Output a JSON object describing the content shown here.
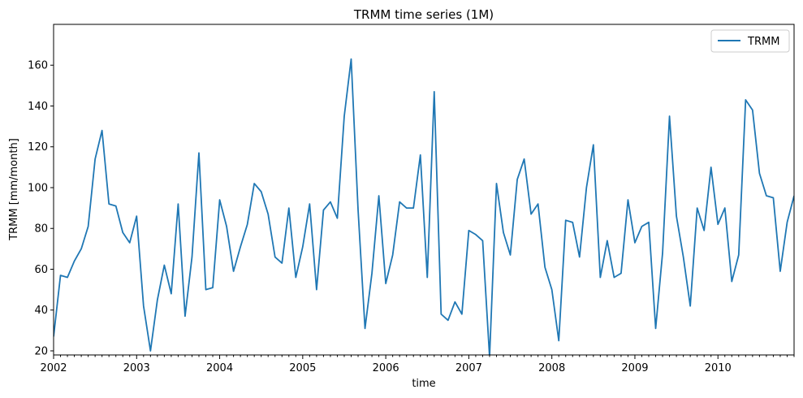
{
  "chart_data": {
    "type": "line",
    "title": "TRMM time series (1M)",
    "xlabel": "time",
    "ylabel": "TRMM [mm/month]",
    "ylim": [
      18,
      180
    ],
    "xlim": [
      "2002-01",
      "2010-12"
    ],
    "grid": false,
    "legend_position": "top-right",
    "color": "#1f77b4",
    "x_tick_labels": [
      "2002",
      "2003",
      "2004",
      "2005",
      "2006",
      "2007",
      "2008",
      "2009",
      "2010"
    ],
    "y_ticks": [
      20,
      40,
      60,
      80,
      100,
      120,
      140,
      160
    ],
    "series": [
      {
        "name": "TRMM",
        "x": [
          "2002-01",
          "2002-02",
          "2002-03",
          "2002-04",
          "2002-05",
          "2002-06",
          "2002-07",
          "2002-08",
          "2002-09",
          "2002-10",
          "2002-11",
          "2002-12",
          "2003-01",
          "2003-02",
          "2003-03",
          "2003-04",
          "2003-05",
          "2003-06",
          "2003-07",
          "2003-08",
          "2003-09",
          "2003-10",
          "2003-11",
          "2003-12",
          "2004-01",
          "2004-02",
          "2004-03",
          "2004-04",
          "2004-05",
          "2004-06",
          "2004-07",
          "2004-08",
          "2004-09",
          "2004-10",
          "2004-11",
          "2004-12",
          "2005-01",
          "2005-02",
          "2005-03",
          "2005-04",
          "2005-05",
          "2005-06",
          "2005-07",
          "2005-08",
          "2005-09",
          "2005-10",
          "2005-11",
          "2005-12",
          "2006-01",
          "2006-02",
          "2006-03",
          "2006-04",
          "2006-05",
          "2006-06",
          "2006-07",
          "2006-08",
          "2006-09",
          "2006-10",
          "2006-11",
          "2006-12",
          "2007-01",
          "2007-02",
          "2007-03",
          "2007-04",
          "2007-05",
          "2007-06",
          "2007-07",
          "2007-08",
          "2007-09",
          "2007-10",
          "2007-11",
          "2007-12",
          "2008-01",
          "2008-02",
          "2008-03",
          "2008-04",
          "2008-05",
          "2008-06",
          "2008-07",
          "2008-08",
          "2008-09",
          "2008-10",
          "2008-11",
          "2008-12",
          "2009-01",
          "2009-02",
          "2009-03",
          "2009-04",
          "2009-05",
          "2009-06",
          "2009-07",
          "2009-08",
          "2009-09",
          "2009-10",
          "2009-11",
          "2009-12",
          "2010-01",
          "2010-02",
          "2010-03",
          "2010-04",
          "2010-05",
          "2010-06",
          "2010-07",
          "2010-08",
          "2010-09",
          "2010-10",
          "2010-11",
          "2010-12"
        ],
        "values": [
          27,
          57,
          56,
          64,
          70,
          81,
          114,
          128,
          92,
          91,
          78,
          73,
          86,
          42,
          20,
          45,
          62,
          48,
          92,
          37,
          66,
          117,
          50,
          51,
          94,
          81,
          59,
          71,
          82,
          102,
          98,
          87,
          66,
          63,
          90,
          56,
          71,
          92,
          50,
          89,
          93,
          85,
          135,
          163,
          89,
          31,
          58,
          96,
          53,
          67,
          93,
          90,
          90,
          116,
          56,
          147,
          38,
          35,
          44,
          38,
          79,
          77,
          74,
          17,
          102,
          78,
          67,
          104,
          114,
          87,
          92,
          61,
          50,
          25,
          84,
          83,
          66,
          100,
          121,
          56,
          74,
          56,
          58,
          94,
          73,
          81,
          83,
          31,
          68,
          135,
          86,
          66,
          42,
          90,
          79,
          110,
          82,
          90,
          54,
          67,
          143,
          138,
          107,
          96,
          95,
          59,
          83,
          96
        ]
      }
    ]
  }
}
